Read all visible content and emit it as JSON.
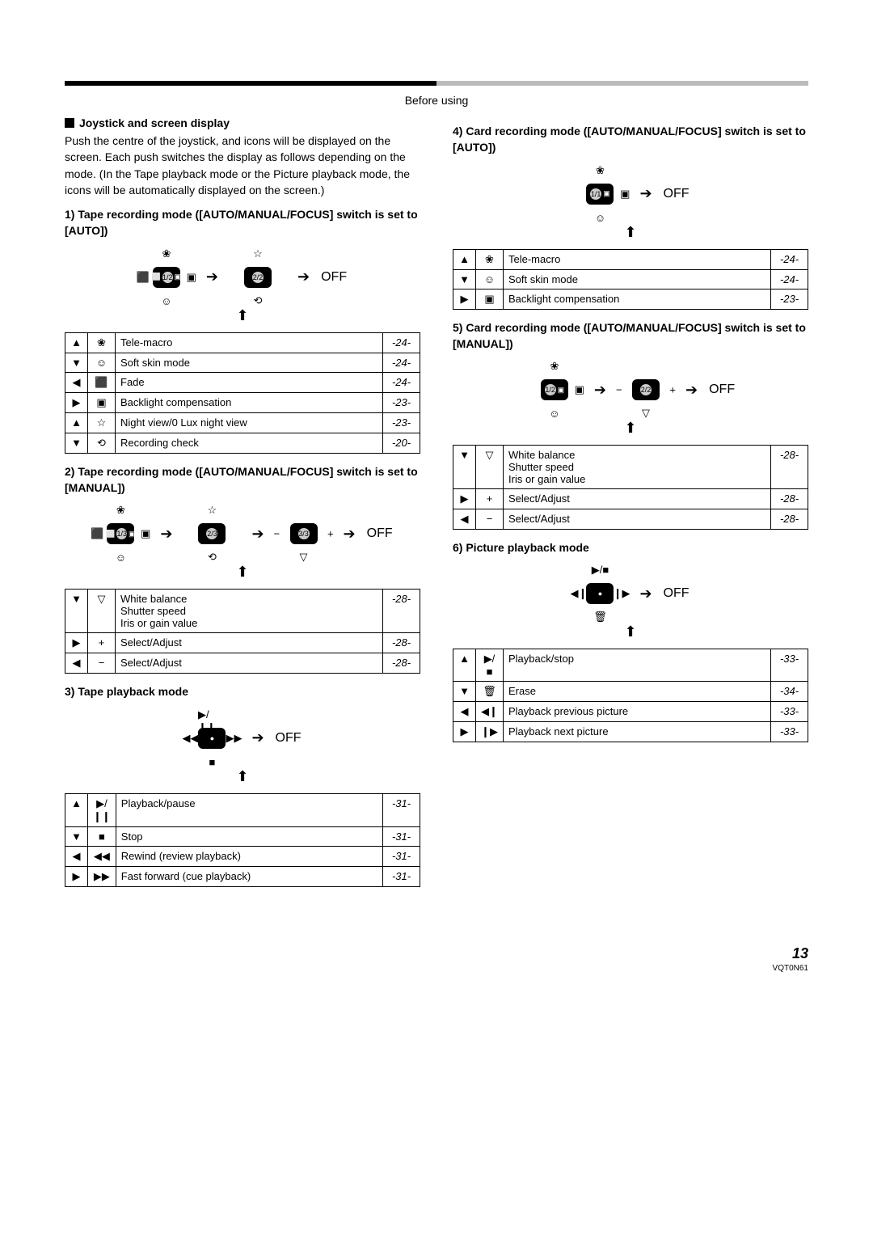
{
  "header": "Before using",
  "title": "Joystick and screen display",
  "intro": "Push the centre of the joystick, and icons will be displayed on the screen. Each push switches the display as follows depending on the mode. (In the Tape playback mode or the Picture playback mode, the icons will be automatically displayed on the screen.)",
  "off": "OFF",
  "modes": {
    "m1": {
      "heading": "1) Tape recording mode ([AUTO/MANUAL/FOCUS] switch is set to [AUTO])",
      "pads": [
        {
          "top": "❀",
          "bottom": "☺",
          "left": "⬛",
          "right": "▣",
          "center": [
            "⬜",
            "1/2",
            "▣"
          ]
        },
        {
          "top": "☆",
          "bottom": "⟲",
          "center": [
            "2/2"
          ]
        }
      ],
      "rows": [
        {
          "dir": "▲",
          "icon": "❀",
          "label": "Tele-macro",
          "page": "-24-"
        },
        {
          "dir": "▼",
          "icon": "☺",
          "label": "Soft skin mode",
          "page": "-24-"
        },
        {
          "dir": "◀",
          "icon": "⬛",
          "label": "Fade",
          "page": "-24-"
        },
        {
          "dir": "▶",
          "icon": "▣",
          "label": "Backlight compensation",
          "page": "-23-"
        },
        {
          "dir": "▲",
          "icon": "☆",
          "label": "Night view/0 Lux night view",
          "page": "-23-"
        },
        {
          "dir": "▼",
          "icon": "⟲",
          "label": "Recording check",
          "page": "-20-"
        }
      ]
    },
    "m2": {
      "heading": "2) Tape recording mode ([AUTO/MANUAL/FOCUS] switch is set to [MANUAL])",
      "pads": [
        {
          "top": "❀",
          "bottom": "☺",
          "left": "⬛",
          "right": "▣",
          "center": [
            "⬜",
            "1/3",
            "▣"
          ]
        },
        {
          "top": "☆",
          "bottom": "⟲",
          "center": [
            "2/3"
          ]
        },
        {
          "bottom": "▽",
          "left": "−",
          "right": "+",
          "center": [
            "3/3"
          ]
        }
      ],
      "rows": [
        {
          "dir": "▼",
          "icon": "▽",
          "label": "White balance\nShutter speed\nIris or gain value",
          "page": "-28-"
        },
        {
          "dir": "▶",
          "icon": "+",
          "label": "Select/Adjust",
          "page": "-28-"
        },
        {
          "dir": "◀",
          "icon": "−",
          "label": "Select/Adjust",
          "page": "-28-"
        }
      ]
    },
    "m3": {
      "heading": "3) Tape playback mode",
      "pads": [
        {
          "top": "▶/❙❙",
          "bottom": "■",
          "left": "◀◀",
          "right": "▶▶",
          "center": [
            "●"
          ]
        }
      ],
      "rows": [
        {
          "dir": "▲",
          "icon": "▶/❙❙",
          "label": "Playback/pause",
          "page": "-31-"
        },
        {
          "dir": "▼",
          "icon": "■",
          "label": "Stop",
          "page": "-31-"
        },
        {
          "dir": "◀",
          "icon": "◀◀",
          "label": "Rewind (review playback)",
          "page": "-31-"
        },
        {
          "dir": "▶",
          "icon": "▶▶",
          "label": "Fast forward (cue playback)",
          "page": "-31-"
        }
      ]
    },
    "m4": {
      "heading": "4) Card recording mode ([AUTO/MANUAL/FOCUS] switch is set to [AUTO])",
      "pads": [
        {
          "top": "❀",
          "bottom": "☺",
          "right": "▣",
          "center": [
            "1/1",
            "▣"
          ]
        }
      ],
      "rows": [
        {
          "dir": "▲",
          "icon": "❀",
          "label": "Tele-macro",
          "page": "-24-"
        },
        {
          "dir": "▼",
          "icon": "☺",
          "label": "Soft skin mode",
          "page": "-24-"
        },
        {
          "dir": "▶",
          "icon": "▣",
          "label": "Backlight compensation",
          "page": "-23-"
        }
      ]
    },
    "m5": {
      "heading": "5) Card recording mode ([AUTO/MANUAL/FOCUS] switch is set to [MANUAL])",
      "pads": [
        {
          "top": "❀",
          "bottom": "☺",
          "right": "▣",
          "center": [
            "1/2",
            "▣"
          ]
        },
        {
          "bottom": "▽",
          "left": "−",
          "right": "+",
          "center": [
            "2/2"
          ]
        }
      ],
      "rows": [
        {
          "dir": "▼",
          "icon": "▽",
          "label": "White balance\nShutter speed\nIris or gain value",
          "page": "-28-"
        },
        {
          "dir": "▶",
          "icon": "+",
          "label": "Select/Adjust",
          "page": "-28-"
        },
        {
          "dir": "◀",
          "icon": "−",
          "label": "Select/Adjust",
          "page": "-28-"
        }
      ]
    },
    "m6": {
      "heading": "6) Picture playback mode",
      "pads": [
        {
          "top": "▶/■",
          "bottom": "🗑",
          "left": "◀❙",
          "right": "❙▶",
          "center": [
            "●"
          ]
        }
      ],
      "rows": [
        {
          "dir": "▲",
          "icon": "▶/■",
          "label": "Playback/stop",
          "page": "-33-"
        },
        {
          "dir": "▼",
          "icon": "🗑",
          "label": "Erase",
          "page": "-34-"
        },
        {
          "dir": "◀",
          "icon": "◀❙",
          "label": "Playback previous picture",
          "page": "-33-"
        },
        {
          "dir": "▶",
          "icon": "❙▶",
          "label": "Playback next picture",
          "page": "-33-"
        }
      ]
    }
  },
  "page_number": "13",
  "doc_id": "VQT0N61"
}
